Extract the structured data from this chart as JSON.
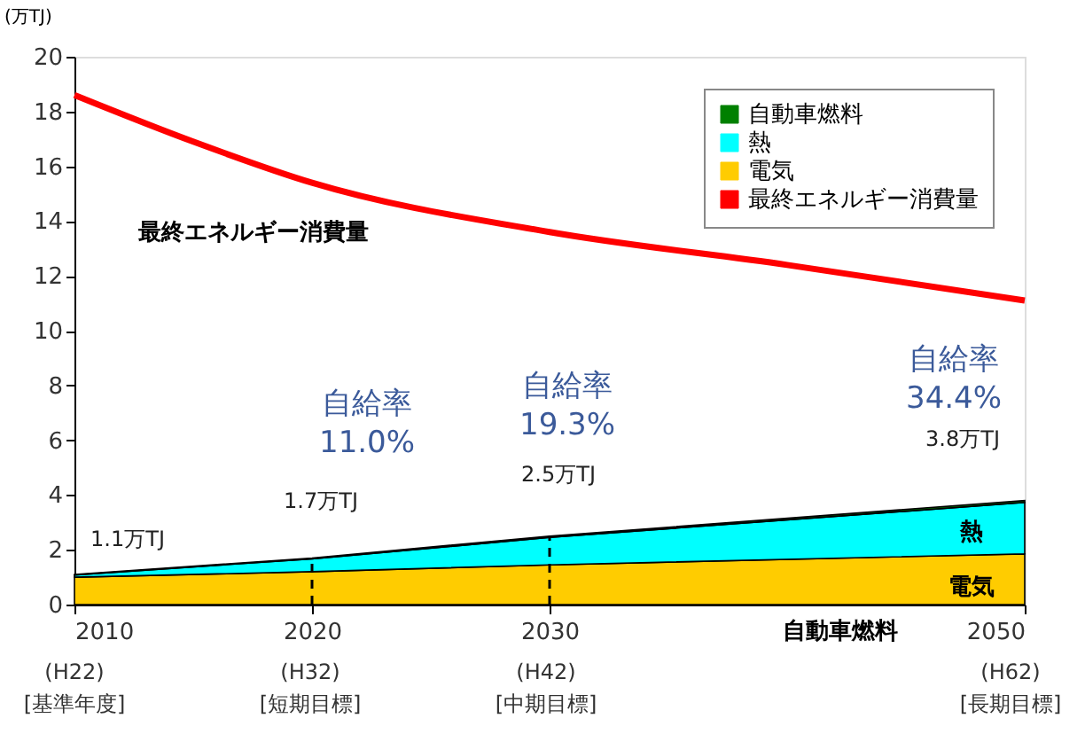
{
  "chart_data": {
    "type": "area",
    "stacked": true,
    "ylabel": "(万TJ)",
    "x": [
      2010,
      2020,
      2030,
      2050
    ],
    "series": [
      {
        "name": "電気",
        "color": "#ffcc00",
        "values": [
          1.0,
          1.2,
          1.45,
          1.85
        ]
      },
      {
        "name": "熱",
        "color": "#00ffff",
        "values": [
          0.08,
          0.47,
          1.0,
          1.88
        ]
      },
      {
        "name": "自動車燃料",
        "color": "#008000",
        "values": [
          0.02,
          0.03,
          0.05,
          0.07
        ]
      },
      {
        "name": "最終エネルギー消費量",
        "type": "line",
        "color": "#ff0000",
        "x": [
          2010,
          2015,
          2020,
          2030,
          2040,
          2050
        ],
        "values": [
          18.6,
          16.9,
          15.4,
          13.6,
          12.4,
          11.1
        ]
      }
    ],
    "xlim": [
      2010,
      2050
    ],
    "xticks": [
      2010,
      2020,
      2030,
      2050
    ],
    "ylim": [
      0,
      20
    ],
    "yticks": [
      0,
      2,
      4,
      6,
      8,
      10,
      12,
      14,
      16,
      18,
      20
    ],
    "totals": [
      "1.1万TJ",
      "1.7万TJ",
      "2.5万TJ",
      "3.8万TJ"
    ],
    "ref_lines": [
      {
        "axis": "x",
        "value": 2020,
        "color": "#000000",
        "line_style": "dashed"
      },
      {
        "axis": "x",
        "value": 2030,
        "color": "#000000",
        "line_style": "dashed"
      }
    ],
    "annotations": [
      "最終エネルギー消費量",
      "自給率\n11.0%",
      "自給率\n19.3%",
      "自給率\n34.4%",
      "熱",
      "電気",
      "自動車燃料",
      "(H22)\n[基準年度]",
      "(H32)\n[短期目標]",
      "(H42)\n[中期目標]",
      "(H62)\n[長期目標]"
    ],
    "grid": false,
    "legend": "top right"
  }
}
